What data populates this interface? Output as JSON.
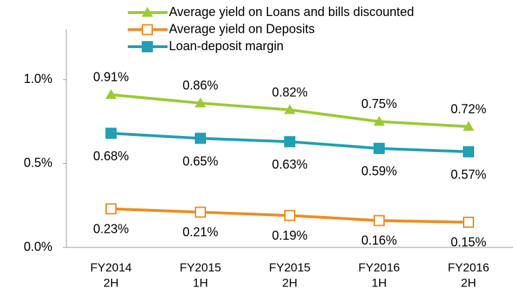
{
  "chart_data": {
    "type": "line",
    "categories": [
      [
        "FY2014",
        "2H"
      ],
      [
        "FY2015",
        "1H"
      ],
      [
        "FY2015",
        "2H"
      ],
      [
        "FY2016",
        "1H"
      ],
      [
        "FY2016",
        "2H"
      ]
    ],
    "series": [
      {
        "name": "Average yield on Loans and bills discounted",
        "color": "#99cc33",
        "marker": "triangle",
        "values": [
          0.91,
          0.86,
          0.82,
          0.75,
          0.72
        ],
        "value_labels": [
          "0.91%",
          "0.86%",
          "0.82%",
          "0.75%",
          "0.72%"
        ]
      },
      {
        "name": "Average yield on Deposits",
        "color": "#f08c1e",
        "marker": "square-open",
        "values": [
          0.23,
          0.21,
          0.19,
          0.16,
          0.15
        ],
        "value_labels": [
          "0.23%",
          "0.21%",
          "0.19%",
          "0.16%",
          "0.15%"
        ]
      },
      {
        "name": "Loan-deposit margin",
        "color": "#1fa0b4",
        "marker": "square",
        "values": [
          0.68,
          0.65,
          0.63,
          0.59,
          0.57
        ],
        "value_labels": [
          "0.68%",
          "0.65%",
          "0.63%",
          "0.59%",
          "0.57%"
        ]
      }
    ],
    "ylim": [
      0,
      1.3
    ],
    "yticks": [
      {
        "value": 0,
        "label": "0.0%"
      },
      {
        "value": 0.5,
        "label": "0.5%"
      },
      {
        "value": 1.0,
        "label": "1.0%"
      }
    ],
    "legend": "top"
  }
}
